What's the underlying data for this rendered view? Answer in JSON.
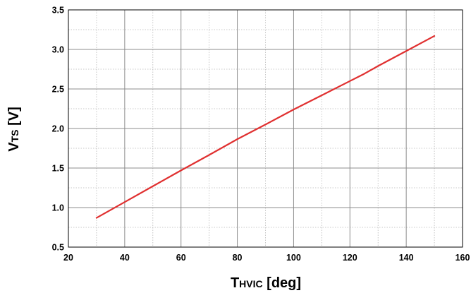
{
  "chart_data": {
    "type": "line",
    "title": "",
    "xlabel": {
      "main": "T",
      "sub": "HVIC",
      "unit": " [deg]"
    },
    "ylabel": {
      "main": "V",
      "sub": "TS",
      "unit": " [V]"
    },
    "xlim": [
      20,
      160
    ],
    "ylim": [
      0.5,
      3.5
    ],
    "x_ticks": [
      20,
      40,
      60,
      80,
      100,
      120,
      140,
      160
    ],
    "y_ticks": [
      0.5,
      1.0,
      1.5,
      2.0,
      2.5,
      3.0,
      3.5
    ],
    "x_tick_labels": [
      "20",
      "40",
      "60",
      "80",
      "100",
      "120",
      "140",
      "160"
    ],
    "y_tick_labels": [
      "0.5",
      "1.0",
      "1.5",
      "2.0",
      "2.5",
      "3.0",
      "3.5"
    ],
    "x_minor_step": 10,
    "y_minor_step": 0.25,
    "grid": true,
    "series": [
      {
        "color": "#e03030",
        "x": [
          30,
          40,
          50,
          60,
          70,
          80,
          90,
          100,
          110,
          120,
          125,
          130,
          140,
          150
        ],
        "y": [
          0.87,
          1.07,
          1.27,
          1.47,
          1.665,
          1.865,
          2.05,
          2.24,
          2.42,
          2.6,
          2.69,
          2.79,
          2.98,
          3.17
        ]
      }
    ]
  }
}
